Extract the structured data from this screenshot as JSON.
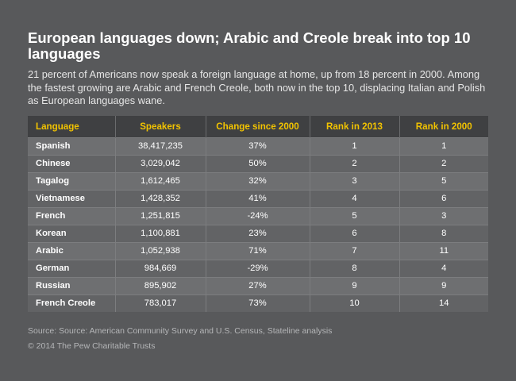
{
  "title": "European languages down; Arabic and Creole break into top 10 languages",
  "subtitle": "21 percent of Americans now speak a foreign language at home, up from 18 percent in 2000. Among the fastest growing are Arabic and French Creole, both now in the top 10, displacing Italian and Polish as European languages wane.",
  "table": {
    "headers": [
      "Language",
      "Speakers",
      "Change since 2000",
      "Rank in 2013",
      "Rank in 2000"
    ],
    "rows": [
      [
        "Spanish",
        "38,417,235",
        "37%",
        "1",
        "1"
      ],
      [
        "Chinese",
        "3,029,042",
        "50%",
        "2",
        "2"
      ],
      [
        "Tagalog",
        "1,612,465",
        "32%",
        "3",
        "5"
      ],
      [
        "Vietnamese",
        "1,428,352",
        "41%",
        "4",
        "6"
      ],
      [
        "French",
        "1,251,815",
        "-24%",
        "5",
        "3"
      ],
      [
        "Korean",
        "1,100,881",
        "23%",
        "6",
        "8"
      ],
      [
        "Arabic",
        "1,052,938",
        "71%",
        "7",
        "11"
      ],
      [
        "German",
        "984,669",
        "-29%",
        "8",
        "4"
      ],
      [
        "Russian",
        "895,902",
        "27%",
        "9",
        "9"
      ],
      [
        "French Creole",
        "783,017",
        "73%",
        "10",
        "14"
      ]
    ]
  },
  "source": "Source: Source: American Community Survey and U.S. Census, Stateline analysis",
  "copyright": "© 2014 The Pew Charitable Trusts",
  "colors": {
    "background": "#58595b",
    "header_text": "#f2c300",
    "header_bg": "#3f4042"
  }
}
